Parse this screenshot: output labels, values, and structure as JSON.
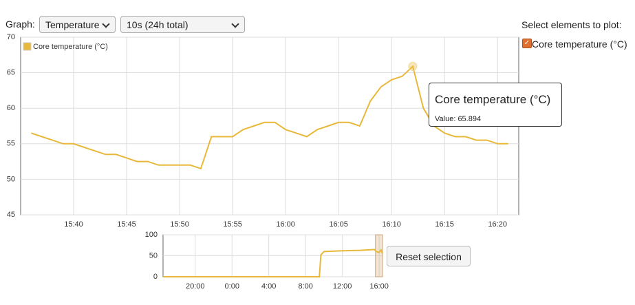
{
  "controls": {
    "graph_label": "Graph:",
    "graph_select": "Temperature",
    "range_select": "10s (24h total)",
    "elements_label": "Select elements to plot:",
    "element_checkbox": "Core temperature (°C)",
    "reset_button": "Reset selection"
  },
  "tooltip": {
    "title": "Core temperature (°C)",
    "value_label": "Value:",
    "value": 65.894,
    "x": "16:12"
  },
  "chart_data": [
    {
      "type": "line",
      "x": [
        "15:36",
        "15:37",
        "15:38",
        "15:39",
        "15:40",
        "15:41",
        "15:42",
        "15:43",
        "15:44",
        "15:45",
        "15:46",
        "15:47",
        "15:48",
        "15:49",
        "15:50",
        "15:51",
        "15:52",
        "15:53",
        "15:54",
        "15:55",
        "15:56",
        "15:57",
        "15:58",
        "15:59",
        "16:00",
        "16:01",
        "16:02",
        "16:03",
        "16:04",
        "16:05",
        "16:06",
        "16:07",
        "16:08",
        "16:09",
        "16:10",
        "16:11",
        "16:12",
        "16:13",
        "16:14",
        "16:15",
        "16:16",
        "16:17",
        "16:18",
        "16:19",
        "16:20",
        "16:21"
      ],
      "series": [
        {
          "name": "Core temperature (°C)",
          "color": "#e8b83a",
          "values": [
            56.5,
            56,
            55.5,
            55,
            55,
            54.5,
            54,
            53.5,
            53.5,
            53,
            52.5,
            52.5,
            52,
            52,
            52,
            52,
            51.5,
            56,
            56,
            56,
            57,
            57.5,
            58,
            58,
            57,
            56.5,
            56,
            57,
            57.5,
            58,
            58,
            57.5,
            61,
            63,
            64,
            64.5,
            65.894,
            60,
            57.5,
            56.5,
            56,
            56,
            55.5,
            55.5,
            55,
            55
          ]
        }
      ],
      "xlim": [
        "15:35",
        "16:22"
      ],
      "xticks": [
        "15:40",
        "15:45",
        "15:50",
        "15:55",
        "16:00",
        "16:05",
        "16:10",
        "16:15",
        "16:20"
      ],
      "ylim": [
        45,
        70
      ],
      "yticks": [
        45,
        50,
        55,
        60,
        65,
        70
      ],
      "grid": true,
      "legend": "top-left"
    },
    {
      "type": "line",
      "x": [
        "16:30",
        "20:00",
        "0:00",
        "4:00",
        "8:00",
        "9:30",
        "9:40",
        "10:00",
        "12:00",
        "14:00",
        "15:30",
        "15:40",
        "16:00",
        "16:12",
        "16:22"
      ],
      "series": [
        {
          "name": "Core temperature (°C)",
          "color": "#e8b83a",
          "values": [
            0,
            0,
            0,
            0,
            0,
            0,
            52,
            60,
            62,
            63,
            65,
            60,
            58,
            64,
            55
          ]
        }
      ],
      "xlim": [
        "16:30",
        "16:22"
      ],
      "xticks": [
        "20:00",
        "0:00",
        "4:00",
        "8:00",
        "12:00",
        "16:00"
      ],
      "ylim": [
        0,
        100
      ],
      "yticks": [
        0,
        50,
        100
      ],
      "grid": true,
      "selection": [
        "15:36",
        "16:22"
      ]
    }
  ]
}
